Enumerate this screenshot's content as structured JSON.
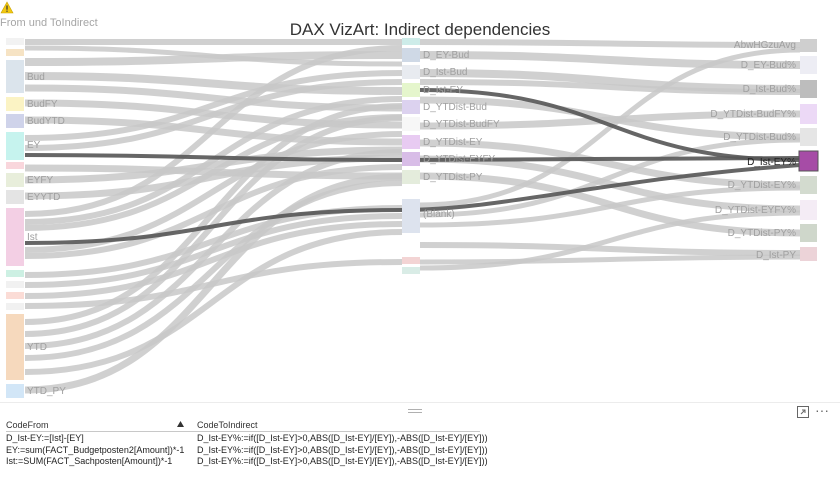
{
  "header": {
    "warning_icon": "warning-icon",
    "subtitle": "From und ToIndirect",
    "title": "DAX VizArt: Indirect dependencies"
  },
  "colors": {
    "link": "#c8c8c8",
    "link_highlight": "#555555",
    "highlight_node": "#a64ca6",
    "text_muted": "#a6a6a6"
  },
  "sankey": {
    "source_nodes": [
      {
        "id": "s1",
        "label": "",
        "color": "#f2f2f2"
      },
      {
        "id": "s2",
        "label": "",
        "color": "#f6e3c4"
      },
      {
        "id": "bud",
        "label": "Bud",
        "color": "#dbe4ec"
      },
      {
        "id": "budfy",
        "label": "BudFY",
        "color": "#fbf3c4"
      },
      {
        "id": "budytd",
        "label": "BudYTD",
        "color": "#cfd3ea"
      },
      {
        "id": "ey",
        "label": "EY",
        "color": "#c6f3ee"
      },
      {
        "id": "s7",
        "label": "",
        "color": "#f9d6dc"
      },
      {
        "id": "eyfy",
        "label": "EYFY",
        "color": "#e8eedb"
      },
      {
        "id": "eyytd",
        "label": "EYYTD",
        "color": "#e4e4e4"
      },
      {
        "id": "ist",
        "label": "Ist",
        "color": "#f3cfe4"
      },
      {
        "id": "s11",
        "label": "",
        "color": "#cdf0e3"
      },
      {
        "id": "s12",
        "label": "",
        "color": "#f1f1f1"
      },
      {
        "id": "s13",
        "label": "",
        "color": "#fbdcd6"
      },
      {
        "id": "s14",
        "label": "",
        "color": "#f1f1f1"
      },
      {
        "id": "ytd",
        "label": "YTD",
        "color": "#f6d9bd"
      },
      {
        "id": "ytdpy",
        "label": "YTD_PY",
        "color": "#d2e6f7"
      }
    ],
    "middle_nodes": [
      {
        "id": "m0",
        "label": "",
        "color": "#cdece9"
      },
      {
        "id": "dey_bud",
        "label": "D_EY-Bud",
        "color": "#cfd9e6"
      },
      {
        "id": "dist_bud",
        "label": "D_Ist-Bud",
        "color": "#e8ebf0"
      },
      {
        "id": "dist_ey",
        "label": "D_Ist-EY",
        "color": "#e5f6cc"
      },
      {
        "id": "dytd_bud",
        "label": "D_YTDist-Bud",
        "color": "#dcd2ef"
      },
      {
        "id": "dytd_budfy",
        "label": "D_YTDist-BudFY",
        "color": "#f7f7f7"
      },
      {
        "id": "dytd_ey",
        "label": "D_YTDist-EY",
        "color": "#e8cbf2"
      },
      {
        "id": "dytd_eyfy",
        "label": "D_YTDist-EYFY",
        "color": "#d8bde7"
      },
      {
        "id": "dytd_py",
        "label": "D_YTDist-PY",
        "color": "#e4ecdc"
      },
      {
        "id": "blank",
        "label": "(Blank)",
        "color": "#dde3ee"
      },
      {
        "id": "m10",
        "label": "",
        "color": "#f3d4d4"
      },
      {
        "id": "m11",
        "label": "",
        "color": "#d9ece6"
      }
    ],
    "target_nodes": [
      {
        "id": "abwhg",
        "label": "AbwHGzuAvg",
        "color": "#cfcfcf"
      },
      {
        "id": "dey_budp",
        "label": "D_EY-Bud%",
        "color": "#ededf4"
      },
      {
        "id": "dist_budp",
        "label": "D_Ist-Bud%",
        "color": "#bdbdbd"
      },
      {
        "id": "dytd_budfyp",
        "label": "D_YTDist-BudFY%",
        "color": "#ecd9f6"
      },
      {
        "id": "dytd_budp",
        "label": "D_YTDist-Bud%",
        "color": "#e5e5e5"
      },
      {
        "id": "dist_eyp",
        "label": "D_Ist-EY%",
        "color": "#a64ca6",
        "highlighted": true
      },
      {
        "id": "dytd_eyp",
        "label": "D_YTDist-EY%",
        "color": "#d3dbcf"
      },
      {
        "id": "dytd_eyfyp",
        "label": "D_YTDist-EYFY%",
        "color": "#f4ecf5"
      },
      {
        "id": "dytd_pyp",
        "label": "D_YTDist-PY%",
        "color": "#cfd7cb"
      },
      {
        "id": "dist_pyp",
        "label": "D_Ist-PY",
        "color": "#ecd3d8"
      }
    ]
  },
  "toolbar": {
    "focus_icon": "focus-mode-icon",
    "more_icon": "more-options-icon",
    "more_label": "···",
    "grip_icon": "resize-grip-icon"
  },
  "table": {
    "columns": [
      "CodeFrom",
      "CodeToIndirect"
    ],
    "sort_icon": "sort-ascending-icon",
    "rows": [
      [
        "D_Ist-EY:=[Ist]-[EY]",
        "D_Ist-EY%:=if([D_Ist-EY]>0,ABS([D_Ist-EY]/[EY]),-ABS([D_Ist-EY]/[EY]))"
      ],
      [
        "EY:=sum(FACT_Budgetposten2[Amount])*-1",
        "D_Ist-EY%:=if([D_Ist-EY]>0,ABS([D_Ist-EY]/[EY]),-ABS([D_Ist-EY]/[EY]))"
      ],
      [
        "Ist:=SUM(FACT_Sachposten[Amount])*-1",
        "D_Ist-EY%:=if([D_Ist-EY]>0,ABS([D_Ist-EY]/[EY]),-ABS([D_Ist-EY]/[EY]))"
      ]
    ]
  }
}
